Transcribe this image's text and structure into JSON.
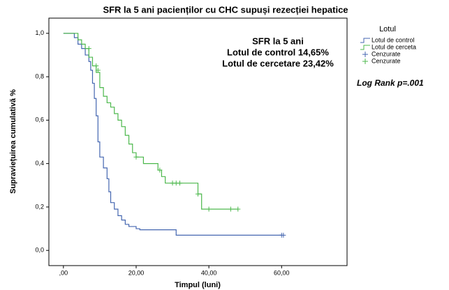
{
  "chart_data": {
    "type": "step",
    "title": "SFR la 5 ani pacienților cu CHC supuși rezecției hepatice",
    "x_label": "Timpul (luni)",
    "y_label": "Supraviețuirea cumulativă %",
    "legend_title": "Lotul",
    "annotations": [
      "SFR la 5 ani",
      "Lotul de control 14,65%",
      "Lotul de cercetare 23,42%"
    ],
    "side_note": "Log Rank p=.001",
    "xlim": [
      -4,
      78
    ],
    "ylim": [
      -0.07,
      1.07
    ],
    "xticks": [
      {
        "value": 0,
        "label": ",00"
      },
      {
        "value": 20,
        "label": "20,00"
      },
      {
        "value": 40,
        "label": "40,00"
      },
      {
        "value": 60,
        "label": "60,00"
      }
    ],
    "yticks": [
      {
        "value": 0,
        "label": "0,0"
      },
      {
        "value": 0.2,
        "label": "0,2"
      },
      {
        "value": 0.4,
        "label": "0,4"
      },
      {
        "value": 0.6,
        "label": "0,6"
      },
      {
        "value": 0.8,
        "label": "0,8"
      },
      {
        "value": 1,
        "label": "1,0"
      }
    ],
    "series": [
      {
        "name": "Lotul de control",
        "color": "#4466b0",
        "kind": "curve",
        "x": [
          0,
          3,
          4,
          5,
          6,
          7,
          7.5,
          8,
          8.5,
          9,
          9.5,
          10,
          11,
          12,
          12.5,
          13,
          14,
          15,
          16,
          17,
          18,
          20,
          21,
          31,
          60
        ],
        "values": [
          1.0,
          0.98,
          0.95,
          0.93,
          0.9,
          0.87,
          0.83,
          0.77,
          0.7,
          0.62,
          0.5,
          0.43,
          0.38,
          0.33,
          0.27,
          0.22,
          0.19,
          0.16,
          0.14,
          0.12,
          0.11,
          0.1,
          0.095,
          0.07,
          0.07
        ]
      },
      {
        "name": "Lotul de cerceta",
        "color": "#4cb84c",
        "kind": "curve",
        "x": [
          0,
          4,
          5,
          6,
          7,
          8,
          9,
          10,
          11,
          12,
          13,
          14,
          15,
          16,
          17,
          18,
          19,
          20,
          22,
          26,
          27,
          28,
          31,
          37,
          38,
          48
        ],
        "values": [
          1.0,
          0.97,
          0.95,
          0.93,
          0.89,
          0.85,
          0.82,
          0.75,
          0.71,
          0.68,
          0.66,
          0.63,
          0.6,
          0.57,
          0.53,
          0.49,
          0.45,
          0.43,
          0.4,
          0.37,
          0.34,
          0.31,
          0.31,
          0.26,
          0.19,
          0.19
        ]
      },
      {
        "name": "Cenzurate",
        "color": "#4466b0",
        "kind": "censored",
        "x": [
          60,
          60.5
        ],
        "values": [
          0.07,
          0.07
        ]
      },
      {
        "name": "Cenzurate",
        "color": "#4cb84c",
        "kind": "censored",
        "x": [
          7,
          9,
          9.5,
          20,
          26.5,
          30,
          31,
          32,
          37,
          40,
          46,
          48
        ],
        "values": [
          0.93,
          0.85,
          0.83,
          0.43,
          0.37,
          0.31,
          0.31,
          0.31,
          0.26,
          0.19,
          0.19,
          0.19
        ]
      }
    ]
  }
}
